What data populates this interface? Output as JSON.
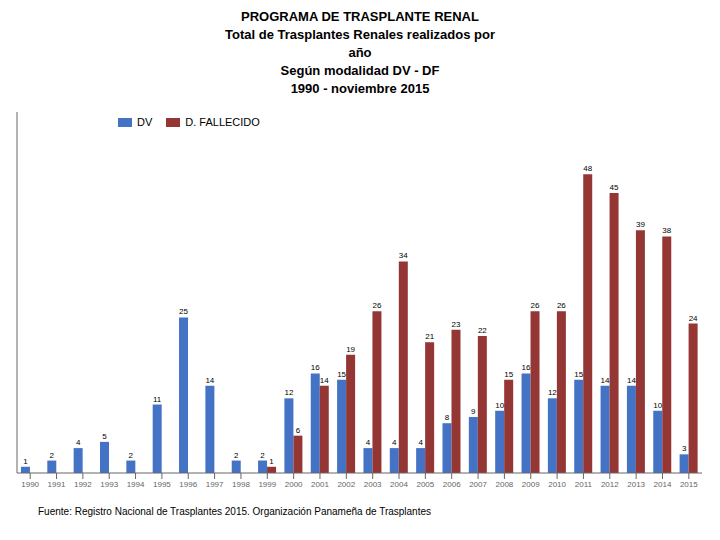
{
  "chart_data": {
    "type": "bar",
    "title": "PROGRAMA DE TRASPLANTE RENAL\nTotal de Trasplantes Renales realizados por\naño\nSegún modalidad DV - DF\n1990 - noviembre 2015",
    "annotations": [
      "Fuente: Registro Nacional de Trasplantes 2015.   Organización Panameña de Trasplantes"
    ],
    "categories": [
      "1990",
      "1991",
      "1992",
      "1993",
      "1994",
      "1995",
      "1996",
      "1997",
      "1998",
      "1999",
      "2000",
      "2001",
      "2002",
      "2003",
      "2004",
      "2005",
      "2006",
      "2007",
      "2008",
      "2009",
      "2010",
      "2011",
      "2012",
      "2013",
      "2014",
      "2015"
    ],
    "series": [
      {
        "name": "DV",
        "color": "#4472C4",
        "values": [
          1,
          2,
          4,
          5,
          2,
          11,
          25,
          14,
          2,
          2,
          12,
          16,
          15,
          4,
          4,
          4,
          8,
          9,
          10,
          16,
          12,
          15,
          14,
          14,
          10,
          3
        ]
      },
      {
        "name": "D. FALLECIDO",
        "color": "#943634",
        "values": [
          0,
          0,
          0,
          0,
          0,
          0,
          0,
          0,
          0,
          1,
          6,
          14,
          19,
          26,
          34,
          21,
          23,
          22,
          15,
          26,
          26,
          48,
          45,
          39,
          38,
          24
        ],
        "value_labels": [
          null,
          null,
          null,
          null,
          null,
          null,
          null,
          null,
          null,
          "1",
          "6",
          "14",
          "19",
          "26",
          "34",
          "21",
          "23",
          "22",
          "15",
          "26",
          "26",
          "48",
          "45",
          "39",
          "38",
          "24"
        ]
      }
    ],
    "ylim": [
      0,
      58
    ],
    "grid": false,
    "legend": "upper left",
    "data_labels": true,
    "tick_labels": "x"
  }
}
